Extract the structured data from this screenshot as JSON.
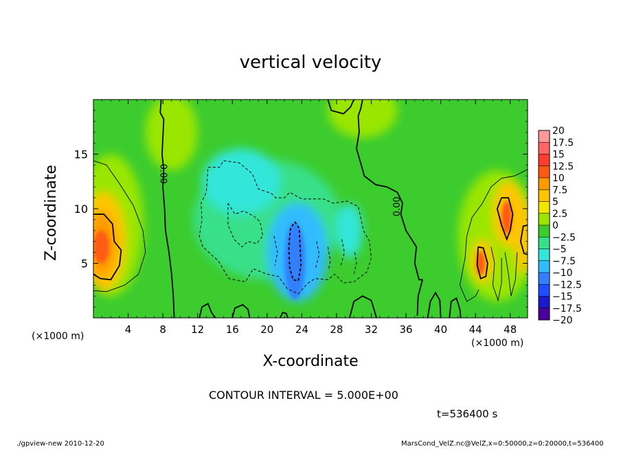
{
  "chart_data": {
    "type": "heatmap",
    "title": "vertical velocity",
    "xlabel": "X-coordinate",
    "ylabel": "Z-coordinate",
    "x_unit_label": "(×1000 m)",
    "xlim": [
      0,
      50
    ],
    "ylim": [
      0,
      20
    ],
    "x_ticks": [
      4,
      8,
      12,
      16,
      20,
      24,
      28,
      32,
      36,
      40,
      44,
      48
    ],
    "y_ticks": [
      5,
      10,
      15
    ],
    "colorbar": {
      "levels": [
        "20",
        "17.5",
        "15",
        "12.5",
        "10",
        "7.5",
        "5",
        "2.5",
        "0",
        "-2.5",
        "-5",
        "-7.5",
        "-10",
        "-12.5",
        "-15",
        "-17.5",
        "-20"
      ],
      "colors": [
        "#ff9999",
        "#ff6666",
        "#ff3d2e",
        "#ff5a14",
        "#ff9a00",
        "#ffc400",
        "#f0e600",
        "#9ae600",
        "#3ccc2e",
        "#38e08a",
        "#33e6d9",
        "#33bbff",
        "#3380ff",
        "#1f4dff",
        "#1a1acc",
        "#4d0099",
        "#6a00a8"
      ]
    },
    "zero_contour_labels": [
      "0.00",
      "0.00"
    ],
    "features": [
      {
        "kind": "updraft",
        "x": 0.8,
        "z": 6.5,
        "peak": 12.5
      },
      {
        "kind": "updraft",
        "x": 47.8,
        "z": 9.0,
        "peak": 10
      },
      {
        "kind": "updraft",
        "x": 44.8,
        "z": 5.0,
        "peak": 10
      },
      {
        "kind": "downdraft",
        "x": 23.3,
        "z": 5.5,
        "peak": -12.5
      },
      {
        "kind": "downdraft",
        "x": 16.5,
        "z": 12.5,
        "peak": -5
      }
    ],
    "contour_interval": "CONTOUR INTERVAL = 5.000E+00",
    "time": "t=536400 s"
  },
  "footer": {
    "left": "./gpview-new  2010-12-20",
    "right": "MarsCond_VelZ.nc@VelZ,x=0:50000,z=0:20000,t=536400"
  }
}
